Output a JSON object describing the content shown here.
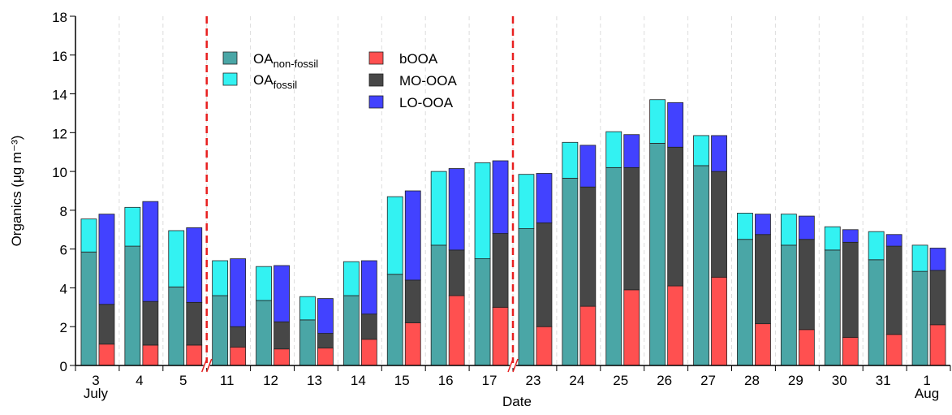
{
  "chart_data": {
    "type": "paired-stacked-bar",
    "xlabel": "Date",
    "ylabel": "Organics (μg m⁻³)",
    "categories": [
      "3",
      "4",
      "5",
      "11",
      "12",
      "13",
      "14",
      "15",
      "16",
      "17",
      "23",
      "24",
      "25",
      "26",
      "27",
      "28",
      "29",
      "30",
      "31",
      "1"
    ],
    "category_sublabels": [
      "July",
      null,
      null,
      null,
      null,
      null,
      null,
      null,
      null,
      null,
      null,
      null,
      null,
      null,
      null,
      null,
      null,
      null,
      null,
      "Aug"
    ],
    "break_before": [
      "11",
      "23"
    ],
    "ylim": [
      0,
      18
    ],
    "yticks": [
      0,
      2,
      4,
      6,
      8,
      10,
      12,
      14,
      16,
      18
    ],
    "grid": true,
    "series": [
      {
        "name": "OA",
        "name_sub": "non-fossil",
        "stack": 0,
        "color": "#4aa6a6",
        "values": [
          5.85,
          6.15,
          4.05,
          3.6,
          3.35,
          2.35,
          3.6,
          4.7,
          6.2,
          5.5,
          7.05,
          9.65,
          10.2,
          11.45,
          10.3,
          6.5,
          6.2,
          5.95,
          5.45,
          4.85
        ]
      },
      {
        "name": "OA",
        "name_sub": "fossil",
        "stack": 0,
        "color": "#33f2f2",
        "values": [
          1.7,
          2.0,
          2.9,
          1.8,
          1.75,
          1.2,
          1.75,
          4.0,
          3.8,
          4.95,
          2.8,
          1.85,
          1.85,
          2.25,
          1.55,
          1.35,
          1.6,
          1.2,
          1.45,
          1.35
        ]
      },
      {
        "name": "bOOA",
        "stack": 1,
        "color": "#ff5050",
        "values": [
          1.1,
          1.05,
          1.05,
          0.95,
          0.85,
          0.9,
          1.35,
          2.2,
          3.6,
          3.0,
          2.0,
          3.05,
          3.9,
          4.1,
          4.55,
          2.15,
          1.85,
          1.45,
          1.6,
          2.1
        ]
      },
      {
        "name": "MO-OOA",
        "stack": 1,
        "color": "#474747",
        "values": [
          2.05,
          2.25,
          2.2,
          1.05,
          1.4,
          0.75,
          1.3,
          2.2,
          2.35,
          3.8,
          5.35,
          6.15,
          6.3,
          7.15,
          5.45,
          4.6,
          4.65,
          4.9,
          4.55,
          2.8
        ]
      },
      {
        "name": "LO-OOA",
        "stack": 1,
        "color": "#4242ff",
        "values": [
          4.65,
          5.15,
          3.85,
          3.5,
          2.9,
          1.8,
          2.75,
          4.6,
          4.2,
          3.75,
          2.55,
          2.15,
          1.7,
          2.3,
          1.85,
          1.05,
          1.2,
          0.65,
          0.6,
          1.15
        ]
      }
    ]
  }
}
